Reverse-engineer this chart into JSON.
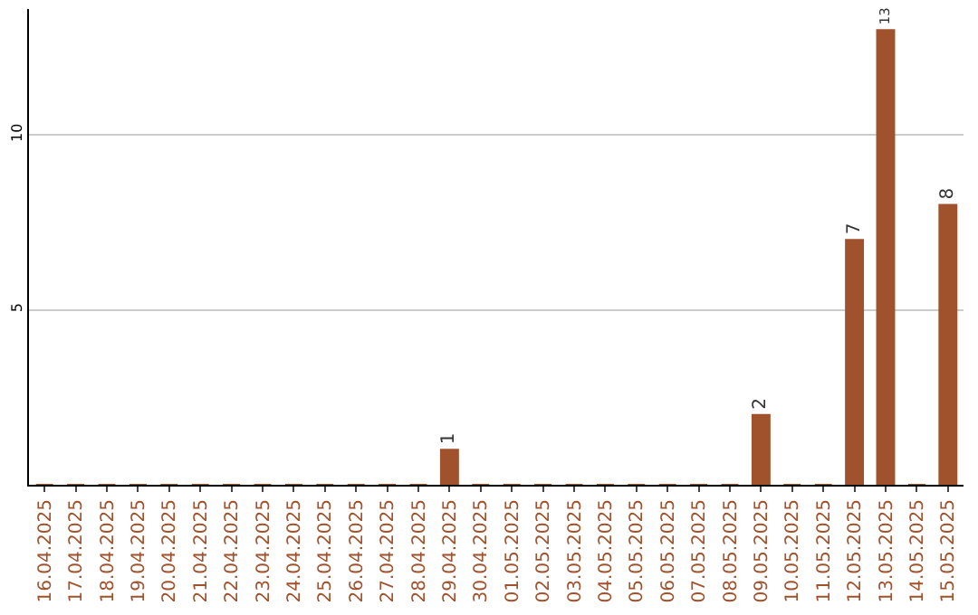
{
  "chart_data": {
    "type": "bar",
    "categories": [
      "16.04.2025",
      "17.04.2025",
      "18.04.2025",
      "19.04.2025",
      "20.04.2025",
      "21.04.2025",
      "22.04.2025",
      "23.04.2025",
      "24.04.2025",
      "25.04.2025",
      "26.04.2025",
      "27.04.2025",
      "28.04.2025",
      "29.04.2025",
      "30.04.2025",
      "01.05.2025",
      "02.05.2025",
      "03.05.2025",
      "04.05.2025",
      "05.05.2025",
      "06.05.2025",
      "07.05.2025",
      "08.05.2025",
      "09.05.2025",
      "10.05.2025",
      "11.05.2025",
      "12.05.2025",
      "13.05.2025",
      "14.05.2025",
      "15.05.2025"
    ],
    "values": [
      0,
      0,
      0,
      0,
      0,
      0,
      0,
      0,
      0,
      0,
      0,
      0,
      0,
      1,
      0,
      0,
      0,
      0,
      0,
      0,
      0,
      0,
      0,
      2,
      0,
      0,
      7,
      13,
      0,
      8
    ],
    "value_labels": [
      null,
      null,
      null,
      null,
      null,
      null,
      null,
      null,
      null,
      null,
      null,
      null,
      null,
      "1",
      null,
      null,
      null,
      null,
      null,
      null,
      null,
      null,
      null,
      "2",
      null,
      null,
      "7",
      "13",
      null,
      "8"
    ],
    "color": "#a0522d",
    "ylim": [
      0,
      13.6
    ],
    "yticks": [
      5,
      10
    ],
    "grid": "y"
  }
}
